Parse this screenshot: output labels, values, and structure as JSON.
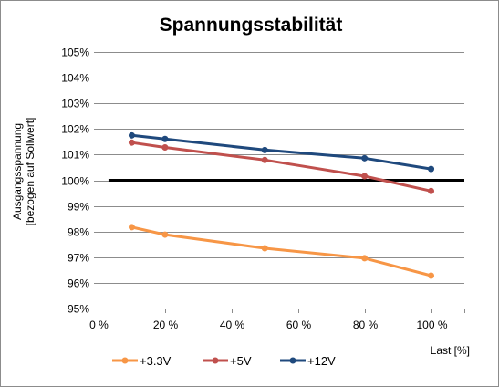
{
  "chart_data": {
    "type": "line",
    "title": "Spannungsstabilität",
    "ylabel_line1": "Ausgangsspannung",
    "ylabel_line2": "[bezogen auf Sollwert]",
    "xlabel": "Last [%]",
    "xlim": [
      0,
      110
    ],
    "ylim": [
      95,
      105
    ],
    "xticks": [
      0,
      20,
      40,
      60,
      80,
      100
    ],
    "xtick_labels": [
      "0 %",
      "20 %",
      "40 %",
      "60 %",
      "80 %",
      "100 %"
    ],
    "yticks": [
      95,
      96,
      97,
      98,
      99,
      100,
      101,
      102,
      103,
      104,
      105
    ],
    "ytick_labels": [
      "95%",
      "96%",
      "97%",
      "98%",
      "99%",
      "100%",
      "101%",
      "102%",
      "103%",
      "104%",
      "105%"
    ],
    "grid": "horizontal",
    "legend_position": "bottom",
    "reference_line": {
      "y": 100,
      "x_range": [
        3,
        110
      ],
      "color": "#000000"
    },
    "series": [
      {
        "name": "+3.3V",
        "color": "#F79646",
        "x": [
          10,
          20,
          50,
          80,
          100
        ],
        "y": [
          98.17,
          97.88,
          97.35,
          96.96,
          96.28
        ]
      },
      {
        "name": "+5V",
        "color": "#C0504D",
        "x": [
          10,
          20,
          50,
          80,
          100
        ],
        "y": [
          101.47,
          101.28,
          100.79,
          100.16,
          99.58
        ]
      },
      {
        "name": "+12V",
        "color": "#1F497D",
        "x": [
          10,
          20,
          50,
          80,
          100
        ],
        "y": [
          101.75,
          101.61,
          101.18,
          100.86,
          100.44
        ]
      }
    ]
  }
}
